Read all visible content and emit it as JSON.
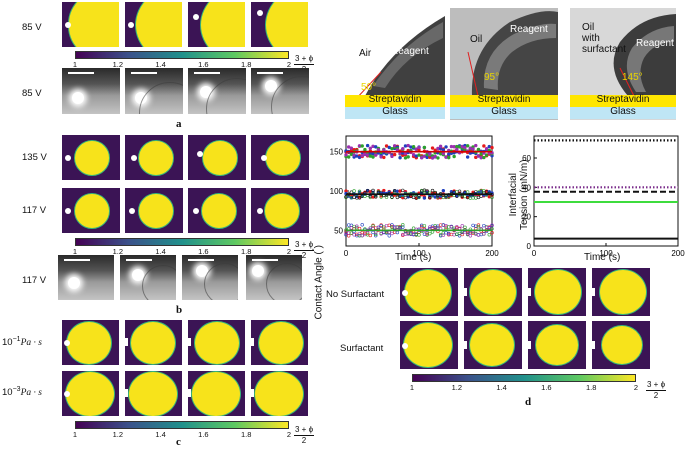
{
  "panel_a": {
    "letter": "a",
    "rows": [
      {
        "label": "85 V",
        "kind": "simulation"
      },
      {
        "label": "85 V",
        "kind": "photo"
      }
    ],
    "colorbar": {
      "ticks": [
        "1",
        "1.2",
        "1.4",
        "1.6",
        "1.8",
        "2"
      ],
      "label_num": "3 + ϕ",
      "label_den": "2"
    }
  },
  "panel_b": {
    "letter": "b",
    "rows": [
      {
        "label": "135 V",
        "kind": "simulation"
      },
      {
        "label": "117 V",
        "kind": "simulation"
      },
      {
        "label": "117 V",
        "kind": "photo"
      }
    ],
    "colorbar": {
      "ticks": [
        "1",
        "1.2",
        "1.4",
        "1.6",
        "1.8",
        "2"
      ],
      "label_num": "3 + ϕ",
      "label_den": "2"
    }
  },
  "panel_c": {
    "letter": "c",
    "rows": [
      {
        "label_base": "10",
        "label_exp": "−1",
        "label_unit": "Pa · s"
      },
      {
        "label_base": "10",
        "label_exp": "−3",
        "label_unit": "Pa · s"
      }
    ],
    "colorbar": {
      "ticks": [
        "1",
        "1.2",
        "1.4",
        "1.6",
        "1.8",
        "2"
      ],
      "label_num": "3 + ϕ",
      "label_den": "2"
    }
  },
  "photos": [
    {
      "medium": "Air",
      "drop": "Reagent",
      "angle": "50°",
      "layer": "Streptavidin",
      "substrate": "Glass"
    },
    {
      "medium": "Oil",
      "drop": "Reagent",
      "angle": "95°",
      "layer": "Streptavidin",
      "substrate": "Glass"
    },
    {
      "medium": "Oil\nwith\nsurfactant",
      "drop": "Reagent",
      "angle": "145°",
      "layer": "Streptavidin",
      "substrate": "Glass"
    }
  ],
  "chart_data": [
    {
      "type": "scatter",
      "title": "",
      "xlabel": "Time (s)",
      "ylabel": "Contact Angle (°)",
      "ylabel_main": "Contact Angle (",
      "ylabel_close": ")",
      "ylabel_degree": "°",
      "xlim": [
        0,
        200
      ],
      "ylim": [
        30,
        170
      ],
      "xticks": [
        "0",
        "100",
        "200"
      ],
      "yticks": [
        "50",
        "100",
        "150"
      ],
      "series": [
        {
          "name": "high",
          "mean": 150,
          "spread": 8,
          "colors": [
            "#e41a1c",
            "#1f3fbf",
            "#2ca02c",
            "#9b30b0"
          ]
        },
        {
          "name": "mid",
          "mean": 96,
          "spread": 5,
          "colors": [
            "#e41a1c",
            "#1f3fbf",
            "#2ca02c",
            "#111111"
          ]
        },
        {
          "name": "low",
          "mean": 50,
          "spread": 7,
          "colors": [
            "#e41a1c",
            "#1f3fbf",
            "#2ca02c",
            "#9b30b0"
          ]
        }
      ],
      "mean_lines": [
        {
          "y": 150,
          "color": "#d40000"
        },
        {
          "y": 96,
          "color": "#111111"
        },
        {
          "y": 50,
          "color": "#2ca02c"
        }
      ]
    },
    {
      "type": "line",
      "xlabel": "Time (s)",
      "ylabel": "Interfacial Tension (mN/m)",
      "ylabel_line1": "Interfacial",
      "ylabel_line2": "Tension (mN/m)",
      "xlim": [
        0,
        200
      ],
      "ylim": [
        0,
        75
      ],
      "xticks": [
        "0",
        "100",
        "200"
      ],
      "yticks": [
        "0",
        "20",
        "40",
        "60"
      ],
      "series": [
        {
          "name": "black dotted",
          "value": 72,
          "color": "#111111",
          "style": "dotted"
        },
        {
          "name": "purple dotted",
          "value": 40,
          "color": "#7b2d8b",
          "style": "dotted"
        },
        {
          "name": "black dashed",
          "value": 37,
          "color": "#111111",
          "style": "dashed"
        },
        {
          "name": "green",
          "value": 30,
          "color": "#3ddc3d",
          "style": "solid"
        },
        {
          "name": "black solid",
          "value": 5,
          "color": "#111111",
          "style": "solid"
        }
      ]
    }
  ],
  "panel_d": {
    "letter": "d",
    "rows": [
      {
        "label": "No Surfactant"
      },
      {
        "label": "Surfactant"
      }
    ],
    "colorbar": {
      "ticks": [
        "1",
        "1.2",
        "1.4",
        "1.6",
        "1.8",
        "2"
      ],
      "label_num": "3 + ϕ",
      "label_den": "2"
    }
  }
}
